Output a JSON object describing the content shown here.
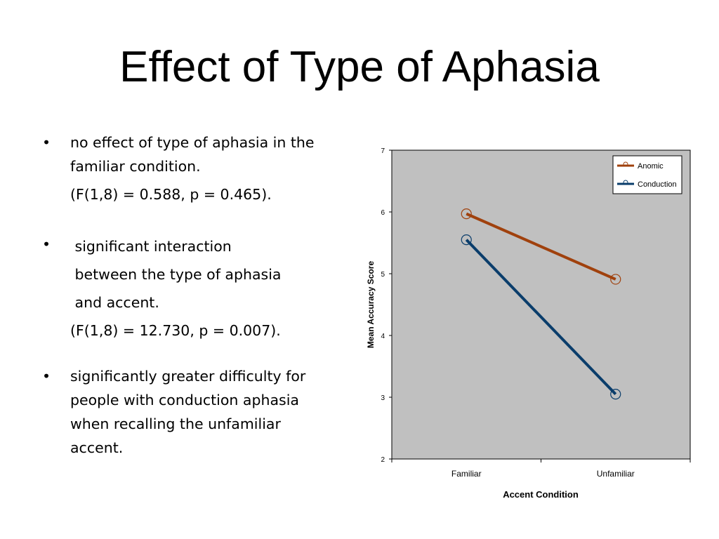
{
  "slide": {
    "title": "Effect of Type of Aphasia"
  },
  "bullets": [
    {
      "marker": "•",
      "lines": [
        "no effect of type of aphasia in the",
        "familiar condition."
      ],
      "stat": "(F(1,8) = 0.588, p = 0.465)."
    },
    {
      "marker": "•",
      "lines": [
        " significant interaction",
        " between the type of aphasia",
        " and accent."
      ],
      "stat": "(F(1,8) = 12.730, p = 0.007)."
    },
    {
      "marker": "•",
      "lines": [
        "significantly greater difficulty for",
        "people with conduction aphasia",
        "when recalling the unfamiliar",
        "accent."
      ]
    }
  ],
  "chart_data": {
    "type": "line",
    "title": "",
    "xlabel": "Accent Condition",
    "ylabel": "Mean Accuracy Score",
    "categories": [
      "Familiar",
      "Unfamiliar"
    ],
    "ylim": [
      2,
      7
    ],
    "yticks": [
      2,
      3,
      4,
      5,
      6,
      7
    ],
    "grid": false,
    "legend_position": "top-right",
    "plot_background": "#c0c0c0",
    "series": [
      {
        "name": "Anomic",
        "values": [
          5.97,
          4.91
        ],
        "color": "#a0410d"
      },
      {
        "name": "Conduction",
        "values": [
          5.55,
          3.05
        ],
        "color": "#0a3d6b"
      }
    ]
  }
}
